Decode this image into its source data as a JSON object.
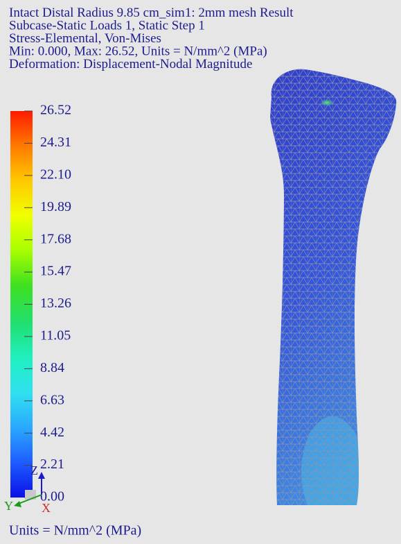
{
  "header": {
    "lines": [
      "Intact Distal Radius 9.85 cm_sim1: 2mm mesh Result",
      "Subcase-Static Loads 1, Static Step 1",
      "Stress-Elemental, Von-Mises",
      "Min: 0.000, Max: 26.52, Units = N/mm^2 (MPa)",
      "Deformation: Displacement-Nodal Magnitude"
    ]
  },
  "legend": {
    "labels": [
      "26.52",
      "24.31",
      "22.10",
      "19.89",
      "17.68",
      "15.47",
      "13.26",
      "11.05",
      "8.84",
      "6.63",
      "4.42",
      "2.21",
      "0.00"
    ]
  },
  "units": "Units = N/mm^2 (MPa)",
  "triad": {
    "z": "Z",
    "y": "Y",
    "x": "X"
  }
}
